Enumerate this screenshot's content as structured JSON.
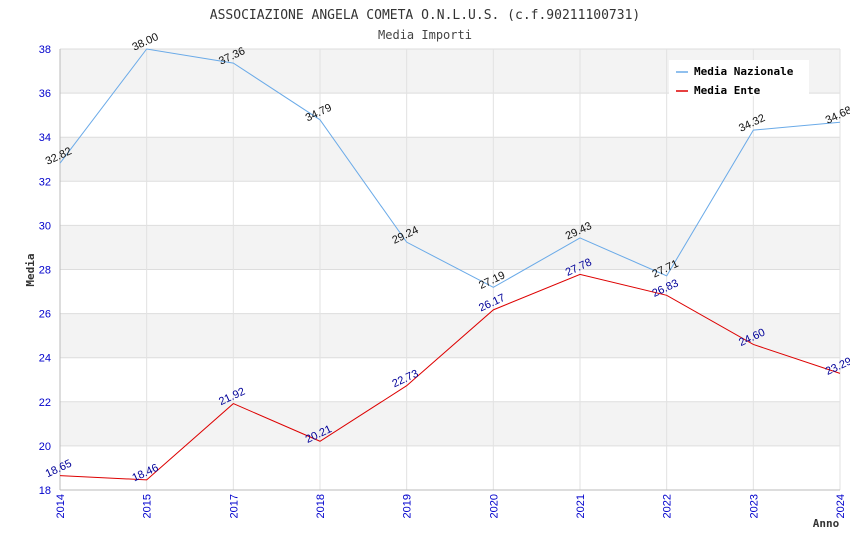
{
  "chart_data": {
    "type": "line",
    "title": "ASSOCIAZIONE ANGELA COMETA O.N.L.U.S. (c.f.90211100731)",
    "subtitle": "Media Importi",
    "xlabel": "Anno",
    "ylabel": "Media",
    "categories": [
      "2014",
      "2015",
      "2017",
      "2018",
      "2019",
      "2020",
      "2021",
      "2022",
      "2023",
      "2024"
    ],
    "ylim": [
      18,
      38
    ],
    "yticks": [
      "18",
      "20",
      "22",
      "24",
      "26",
      "28",
      "30",
      "32",
      "34",
      "36",
      "38"
    ],
    "grid": true,
    "legend_position": "top-right",
    "series": [
      {
        "name": "Media Nazionale",
        "color": "#6aaae8",
        "values": [
          32.82,
          38.0,
          37.36,
          34.79,
          29.24,
          27.19,
          29.43,
          27.71,
          34.32,
          34.68
        ],
        "labels": [
          "32.82",
          "38.00",
          "37.36",
          "34.79",
          "29.24",
          "27.19",
          "29.43",
          "27.71",
          "34.32",
          "34.68"
        ]
      },
      {
        "name": "Media Ente",
        "color": "#dd0000",
        "values": [
          18.65,
          18.46,
          21.92,
          20.21,
          22.73,
          26.17,
          27.78,
          26.83,
          24.6,
          23.29
        ],
        "labels": [
          "18.65",
          "18.46",
          "21.92",
          "20.21",
          "22.73",
          "26.17",
          "27.78",
          "26.83",
          "24.60",
          "23.29"
        ]
      }
    ]
  }
}
